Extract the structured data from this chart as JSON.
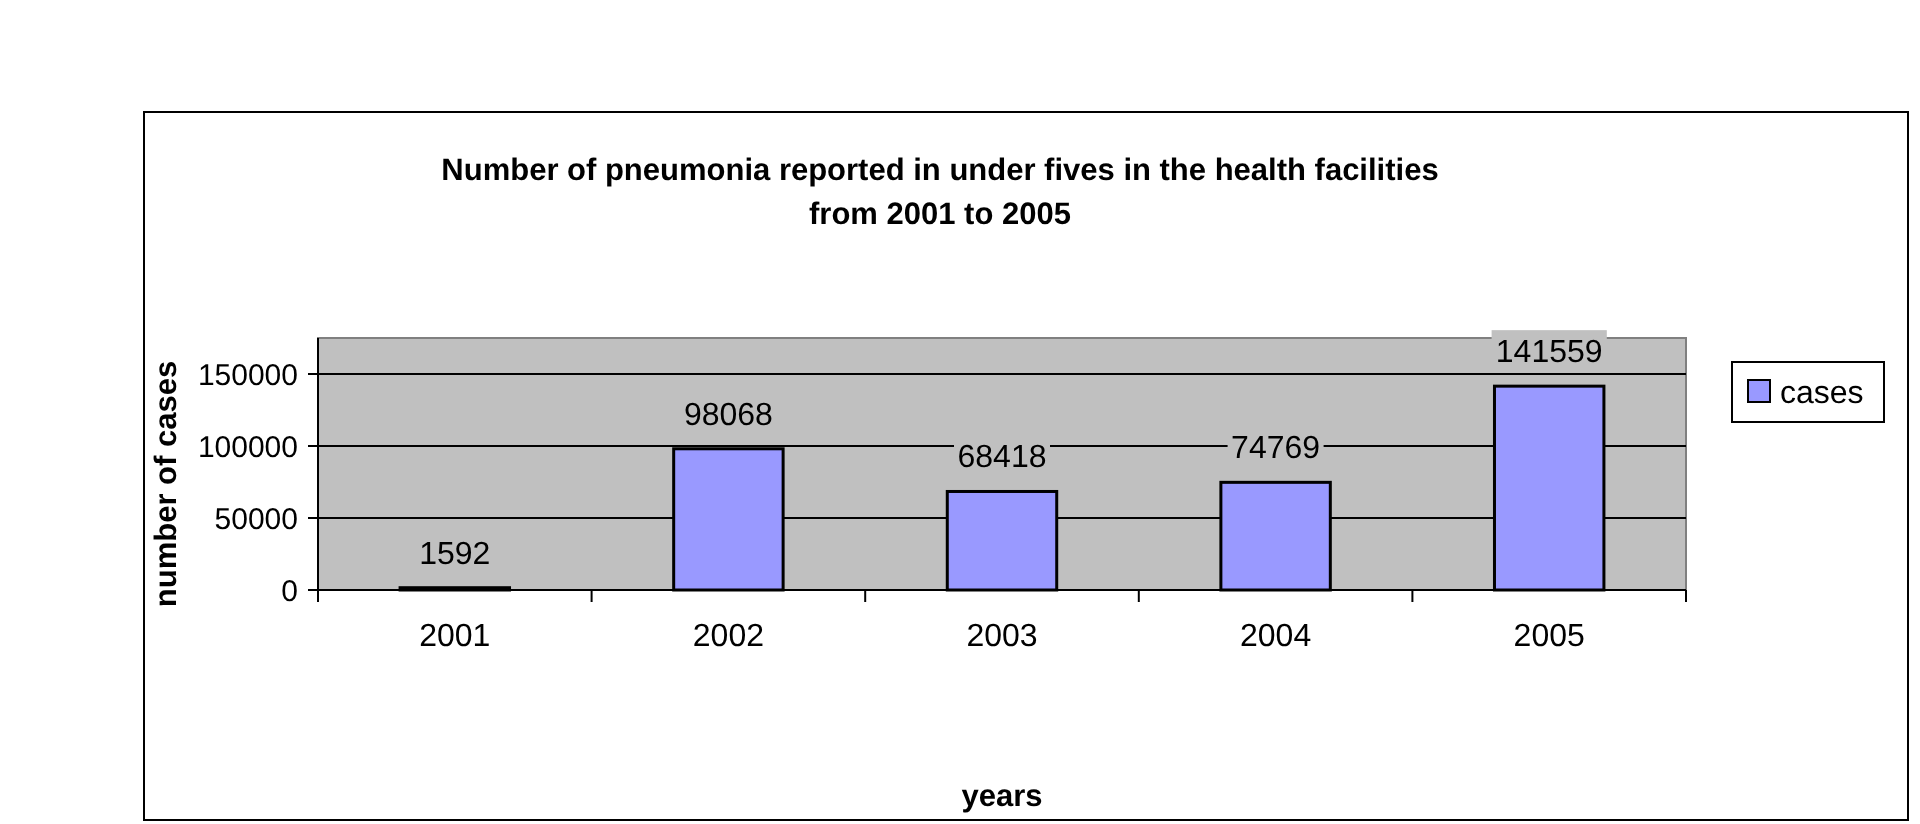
{
  "chart_data": {
    "type": "bar",
    "title": "Number of pneumonia reported in under fives in the health facilities from 2001 to 2005",
    "xlabel": "years",
    "ylabel": "number of cases",
    "categories": [
      "2001",
      "2002",
      "2003",
      "2004",
      "2005"
    ],
    "series": [
      {
        "name": "cases",
        "color": "#9999ff",
        "values": [
          1592,
          98068,
          68418,
          74769,
          141559
        ]
      }
    ],
    "ylim": [
      0,
      175000
    ],
    "yticks": [
      0,
      50000,
      100000,
      150000
    ],
    "grid": "y",
    "legend": "right",
    "data_labels": true
  }
}
